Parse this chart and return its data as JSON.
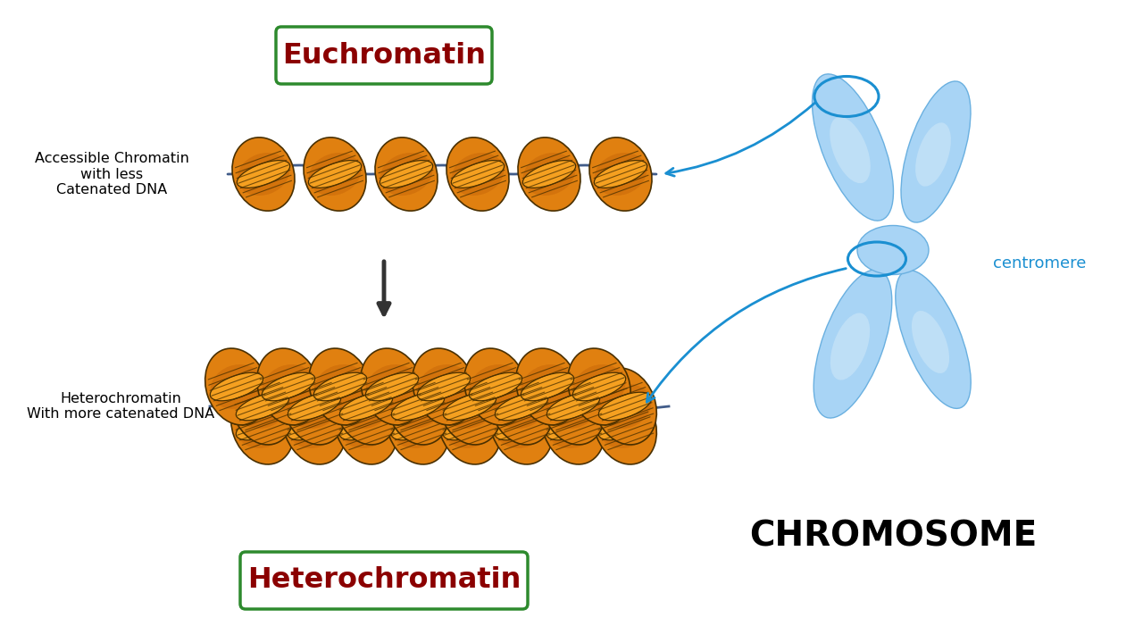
{
  "bg_color": "#ffffff",
  "euchromatin_label": "Euchromatin",
  "heterochromatin_label": "Heterochromatin",
  "box_border_color": "#2d8a2d",
  "label_text_color": "#8b0000",
  "accessible_text": "Accessible Chromatin\nwith less\nCatenated DNA",
  "hetero_desc_text": "Heterochromatin\nWith more catenated DNA",
  "centromere_text": "centromere",
  "chromosome_text": "CHROMOSOME",
  "nuc_orange_light": "#f5a020",
  "nuc_orange_mid": "#e08010",
  "nuc_orange_dark": "#c06008",
  "nuc_outline": "#4a3000",
  "dna_color": "#2c4a7c",
  "chrom_fill": "#a8d4f5",
  "chrom_edge": "#6ab0e0",
  "arrow_dark": "#333333",
  "pointer_blue": "#1a8fd1"
}
